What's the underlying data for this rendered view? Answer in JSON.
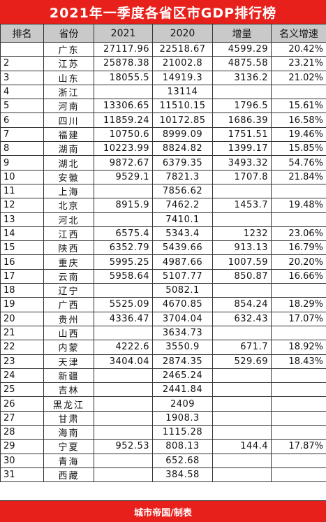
{
  "title": "2021年一季度各省区市GDP排行榜",
  "columns": [
    "排名",
    "省份",
    "2021",
    "2020",
    "增量",
    "名义增速"
  ],
  "rows": [
    {
      "rank": "",
      "province": "广东",
      "v2021": "27117.96",
      "v2020": "22518.67",
      "increase": "4599.29",
      "growth": "20.42%"
    },
    {
      "rank": "2",
      "province": "江苏",
      "v2021": "25878.38",
      "v2020": "21002.8",
      "increase": "4875.58",
      "growth": "23.21%"
    },
    {
      "rank": "3",
      "province": "山东",
      "v2021": "18055.5",
      "v2020": "14919.3",
      "increase": "3136.2",
      "growth": "21.02%"
    },
    {
      "rank": "4",
      "province": "浙江",
      "v2021": "",
      "v2020": "13114",
      "increase": "",
      "growth": ""
    },
    {
      "rank": "5",
      "province": "河南",
      "v2021": "13306.65",
      "v2020": "11510.15",
      "increase": "1796.5",
      "growth": "15.61%"
    },
    {
      "rank": "6",
      "province": "四川",
      "v2021": "11859.24",
      "v2020": "10172.85",
      "increase": "1686.39",
      "growth": "16.58%"
    },
    {
      "rank": "7",
      "province": "福建",
      "v2021": "10750.6",
      "v2020": "8999.09",
      "increase": "1751.51",
      "growth": "19.46%"
    },
    {
      "rank": "8",
      "province": "湖南",
      "v2021": "10223.99",
      "v2020": "8824.82",
      "increase": "1399.17",
      "growth": "15.85%"
    },
    {
      "rank": "9",
      "province": "湖北",
      "v2021": "9872.67",
      "v2020": "6379.35",
      "increase": "3493.32",
      "growth": "54.76%"
    },
    {
      "rank": "10",
      "province": "安徽",
      "v2021": "9529.1",
      "v2020": "7821.3",
      "increase": "1707.8",
      "growth": "21.84%"
    },
    {
      "rank": "11",
      "province": "上海",
      "v2021": "",
      "v2020": "7856.62",
      "increase": "",
      "growth": ""
    },
    {
      "rank": "12",
      "province": "北京",
      "v2021": "8915.9",
      "v2020": "7462.2",
      "increase": "1453.7",
      "growth": "19.48%"
    },
    {
      "rank": "13",
      "province": "河北",
      "v2021": "",
      "v2020": "7410.1",
      "increase": "",
      "growth": ""
    },
    {
      "rank": "14",
      "province": "江西",
      "v2021": "6575.4",
      "v2020": "5343.4",
      "increase": "1232",
      "growth": "23.06%"
    },
    {
      "rank": "15",
      "province": "陕西",
      "v2021": "6352.79",
      "v2020": "5439.66",
      "increase": "913.13",
      "growth": "16.79%"
    },
    {
      "rank": "16",
      "province": "重庆",
      "v2021": "5995.25",
      "v2020": "4987.66",
      "increase": "1007.59",
      "growth": "20.20%"
    },
    {
      "rank": "17",
      "province": "云南",
      "v2021": "5958.64",
      "v2020": "5107.77",
      "increase": "850.87",
      "growth": "16.66%"
    },
    {
      "rank": "18",
      "province": "辽宁",
      "v2021": "",
      "v2020": "5082.1",
      "increase": "",
      "growth": ""
    },
    {
      "rank": "19",
      "province": "广西",
      "v2021": "5525.09",
      "v2020": "4670.85",
      "increase": "854.24",
      "growth": "18.29%"
    },
    {
      "rank": "20",
      "province": "贵州",
      "v2021": "4336.47",
      "v2020": "3704.04",
      "increase": "632.43",
      "growth": "17.07%"
    },
    {
      "rank": "21",
      "province": "山西",
      "v2021": "",
      "v2020": "3634.73",
      "increase": "",
      "growth": ""
    },
    {
      "rank": "22",
      "province": "内蒙",
      "v2021": "4222.6",
      "v2020": "3550.9",
      "increase": "671.7",
      "growth": "18.92%"
    },
    {
      "rank": "23",
      "province": "天津",
      "v2021": "3404.04",
      "v2020": "2874.35",
      "increase": "529.69",
      "growth": "18.43%"
    },
    {
      "rank": "24",
      "province": "新疆",
      "v2021": "",
      "v2020": "2465.24",
      "increase": "",
      "growth": ""
    },
    {
      "rank": "25",
      "province": "吉林",
      "v2021": "",
      "v2020": "2441.84",
      "increase": "",
      "growth": ""
    },
    {
      "rank": "26",
      "province": "黑龙江",
      "v2021": "",
      "v2020": "2409",
      "increase": "",
      "growth": ""
    },
    {
      "rank": "27",
      "province": "甘肃",
      "v2021": "",
      "v2020": "1908.3",
      "increase": "",
      "growth": ""
    },
    {
      "rank": "28",
      "province": "海南",
      "v2021": "",
      "v2020": "1115.28",
      "increase": "",
      "growth": ""
    },
    {
      "rank": "29",
      "province": "宁夏",
      "v2021": "952.53",
      "v2020": "808.13",
      "increase": "144.4",
      "growth": "17.87%"
    },
    {
      "rank": "30",
      "province": "青海",
      "v2021": "",
      "v2020": "652.68",
      "increase": "",
      "growth": ""
    },
    {
      "rank": "31",
      "province": "西藏",
      "v2021": "",
      "v2020": "384.58",
      "increase": "",
      "growth": ""
    }
  ],
  "footer": "城市帝国/制表",
  "colors": {
    "banner": "#e8201b",
    "header_bg": "#c9c9c9",
    "grid_line": "#333333"
  }
}
